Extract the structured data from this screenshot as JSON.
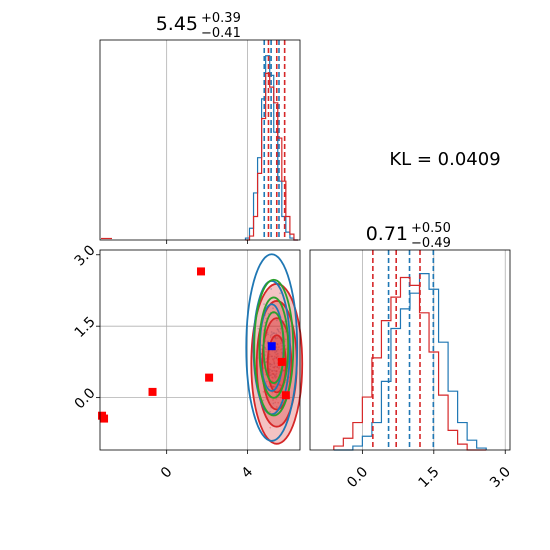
{
  "chart_data": {
    "type": "corner",
    "annotation": "KL = 0.0409",
    "params": [
      {
        "title_value": "5.45",
        "title_plus": "+0.39",
        "title_minus": "−0.41"
      },
      {
        "title_value": "0.71",
        "title_plus": "+0.50",
        "title_minus": "−0.49"
      }
    ],
    "colors": {
      "blue": "#1f77b4",
      "red": "#d62728",
      "green": "#2ca02c",
      "marker_red": "#ff0000",
      "marker_blue": "#0000ff"
    },
    "x_ticks_param0": [
      "0",
      "4"
    ],
    "y_ticks_param1": [
      "3.0",
      "1.5",
      "0.0"
    ],
    "x_ticks_param1": [
      "0.0",
      "1.5",
      "3.0"
    ],
    "x_range_param0": [
      -3.3,
      6.6
    ],
    "y_range_param1": [
      -1.1,
      3.1
    ],
    "x_range_param1": [
      -1.1,
      3.1
    ],
    "hist0_blue": {
      "bin_edges": [
        3.9,
        4.1,
        4.3,
        4.5,
        4.7,
        4.9,
        5.1,
        5.3,
        5.5,
        5.7,
        5.9,
        6.1,
        6.3,
        6.5
      ],
      "counts": [
        0.01,
        0.06,
        0.24,
        0.42,
        0.72,
        0.94,
        0.84,
        0.55,
        0.3,
        0.12,
        0.04,
        0.01,
        0.0
      ],
      "quantile_lines": [
        4.83,
        5.17,
        5.56
      ]
    },
    "hist0_red": {
      "bin_edges": [
        3.9,
        4.1,
        4.3,
        4.5,
        4.7,
        4.9,
        5.1,
        5.3,
        5.5,
        5.7,
        5.9,
        6.1,
        6.3,
        6.5
      ],
      "counts": [
        0.0,
        0.02,
        0.12,
        0.34,
        0.62,
        0.85,
        0.78,
        0.7,
        0.52,
        0.3,
        0.12,
        0.03,
        0.0
      ],
      "quantile_lines": [
        5.04,
        5.45,
        5.84
      ]
    },
    "hist1_blue": {
      "bin_edges": [
        -0.6,
        -0.4,
        -0.2,
        0.0,
        0.2,
        0.4,
        0.6,
        0.8,
        1.0,
        1.2,
        1.4,
        1.6,
        1.8,
        2.0,
        2.2,
        2.4,
        2.6
      ],
      "counts": [
        0.0,
        0.0,
        0.02,
        0.07,
        0.14,
        0.35,
        0.62,
        0.72,
        0.8,
        0.9,
        0.82,
        0.55,
        0.3,
        0.14,
        0.05,
        0.01,
        0.0
      ],
      "quantile_lines": [
        0.55,
        0.99,
        1.49
      ]
    },
    "hist1_red": {
      "bin_edges": [
        -0.6,
        -0.4,
        -0.2,
        0.0,
        0.2,
        0.4,
        0.6,
        0.8,
        1.0,
        1.2,
        1.4,
        1.6,
        1.8,
        2.0,
        2.2,
        2.4,
        2.6
      ],
      "counts": [
        0.02,
        0.06,
        0.14,
        0.27,
        0.47,
        0.66,
        0.78,
        0.88,
        0.84,
        0.7,
        0.5,
        0.28,
        0.1,
        0.03,
        0.0,
        0.0,
        0.0
      ],
      "quantile_lines": [
        0.22,
        0.71,
        1.21
      ]
    },
    "scatter_red_markers": [
      {
        "x": 1.7,
        "y": 2.65
      },
      {
        "x": -0.7,
        "y": 0.12
      },
      {
        "x": 2.1,
        "y": 0.42
      },
      {
        "x": -3.2,
        "y": -0.38
      },
      {
        "x": -3.1,
        "y": -0.44
      },
      {
        "x": 5.7,
        "y": 0.75
      },
      {
        "x": 5.9,
        "y": 0.05
      }
    ],
    "scatter_blue_markers": [
      {
        "x": 5.2,
        "y": 1.08
      }
    ],
    "contours": {
      "blue": {
        "center": [
          5.2,
          1.05
        ],
        "sx": 0.45,
        "sy": 0.7,
        "levels": [
          1.3,
          2.0,
          2.8
        ]
      },
      "red": {
        "center": [
          5.45,
          0.71
        ],
        "sx": 0.45,
        "sy": 0.6,
        "levels": [
          1.0,
          1.6,
          2.2,
          2.8
        ]
      },
      "green": {
        "center": [
          5.3,
          1.05
        ],
        "sx": 0.42,
        "sy": 0.62,
        "levels": [
          1.2,
          1.7,
          2.3
        ]
      }
    }
  }
}
